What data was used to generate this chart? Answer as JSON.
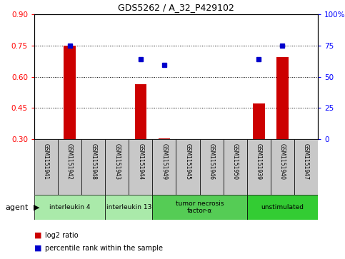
{
  "title": "GDS5262 / A_32_P429102",
  "samples": [
    "GSM1151941",
    "GSM1151942",
    "GSM1151948",
    "GSM1151943",
    "GSM1151944",
    "GSM1151949",
    "GSM1151945",
    "GSM1151946",
    "GSM1151950",
    "GSM1151939",
    "GSM1151940",
    "GSM1151947"
  ],
  "log2_ratio": [
    null,
    0.75,
    null,
    null,
    0.565,
    0.305,
    null,
    null,
    null,
    0.47,
    0.695,
    null
  ],
  "percentile_rank_scaled": [
    null,
    0.75,
    null,
    null,
    0.685,
    0.655,
    null,
    null,
    null,
    0.685,
    0.75,
    null
  ],
  "ylim_left": [
    0.3,
    0.9
  ],
  "ylim_right": [
    0,
    100
  ],
  "yticks_left": [
    0.3,
    0.45,
    0.6,
    0.75,
    0.9
  ],
  "yticks_right": [
    0,
    25,
    50,
    75,
    100
  ],
  "groups": [
    {
      "label": "interleukin 4",
      "start": 0,
      "end": 2,
      "color": "#aaeaaa"
    },
    {
      "label": "interleukin 13",
      "start": 3,
      "end": 4,
      "color": "#aaeaaa"
    },
    {
      "label": "tumor necrosis\nfactor-α",
      "start": 5,
      "end": 8,
      "color": "#55cc55"
    },
    {
      "label": "unstimulated",
      "start": 9,
      "end": 11,
      "color": "#33cc33"
    }
  ],
  "bar_color": "#cc0000",
  "dot_color": "#0000cc",
  "bar_bottom": 0.3,
  "n_samples": 12,
  "grid_linestyle": ":",
  "grid_color": "black",
  "sample_bg_color": "#c8c8c8",
  "legend_log2_color": "#cc0000",
  "legend_pct_color": "#0000cc"
}
